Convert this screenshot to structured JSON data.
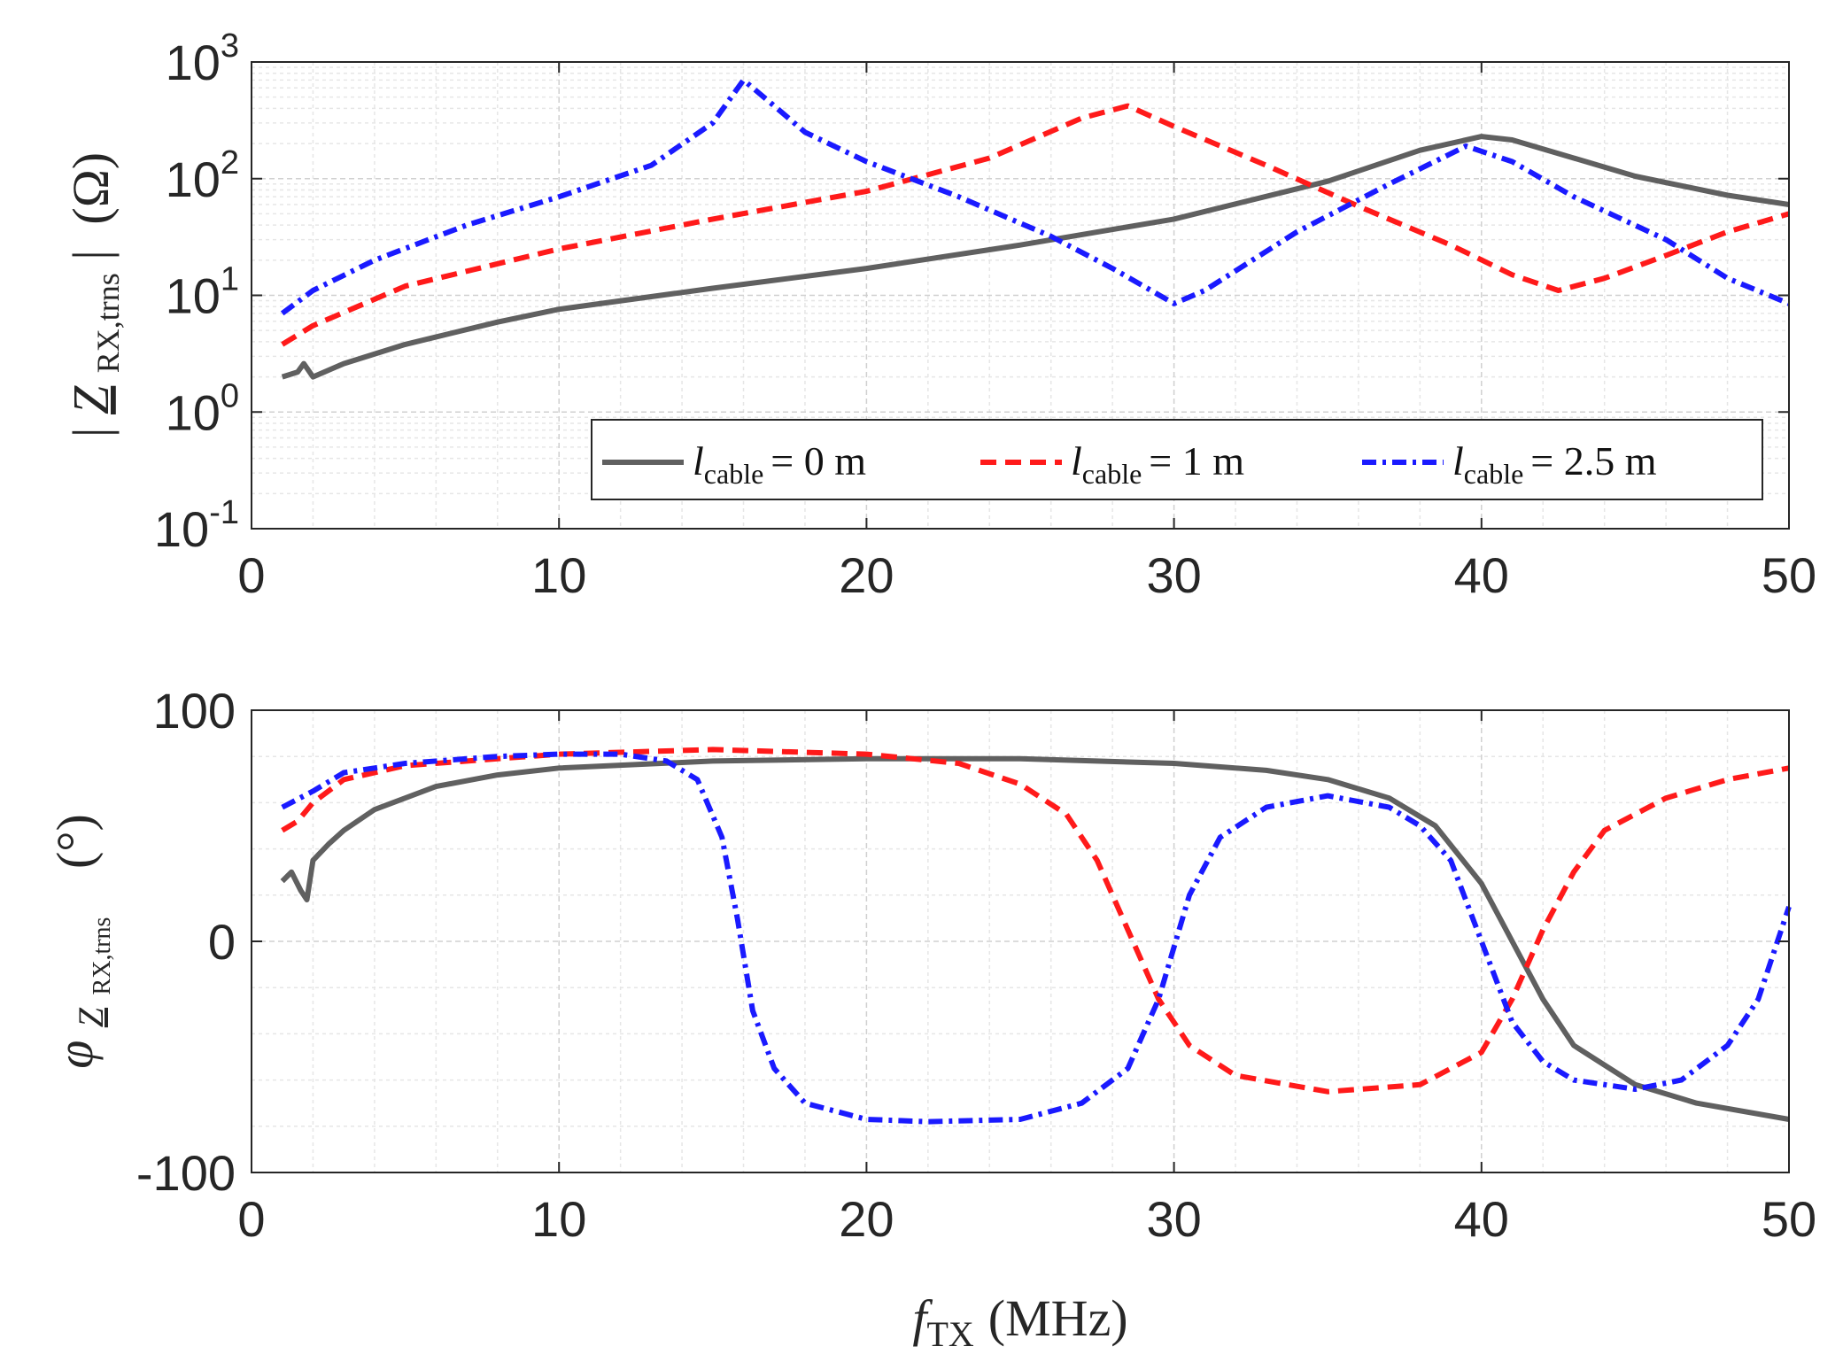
{
  "figure": {
    "xlabel": {
      "var": "f",
      "sub": "TX",
      "unit": "(MHz)"
    }
  },
  "chart_data": [
    {
      "type": "line",
      "title": "",
      "yscale": "log",
      "ylabel": {
        "pre": "|",
        "var": "Z",
        "sub": "RX,trns",
        "post": "|",
        "unit": "(Ω)"
      },
      "xlim": [
        0,
        50
      ],
      "ylim": [
        0.1,
        1000
      ],
      "xticks": [
        0,
        10,
        20,
        30,
        40,
        50
      ],
      "xtick_labels": [
        "0",
        "10",
        "20",
        "30",
        "40",
        "50"
      ],
      "yticks": [
        0.1,
        1,
        10,
        100,
        1000
      ],
      "ytick_labels": [
        {
          "base": "10",
          "exp": "-1"
        },
        {
          "base": "10",
          "exp": "0"
        },
        {
          "base": "10",
          "exp": "1"
        },
        {
          "base": "10",
          "exp": "2"
        },
        {
          "base": "10",
          "exp": "3"
        }
      ],
      "grid": true,
      "legend_position": "bottom-right",
      "series": [
        {
          "name": "l_cable = 0 m",
          "legend": {
            "var": "l",
            "sub": "cable",
            "rest": "= 0 m"
          },
          "color": "#606060",
          "dash": "solid",
          "x": [
            1,
            1.5,
            1.7,
            2,
            3,
            5,
            8,
            10,
            15,
            20,
            25,
            30,
            35,
            38,
            40,
            41,
            43,
            45,
            48,
            50
          ],
          "y": [
            2,
            2.2,
            2.6,
            2.0,
            2.6,
            3.8,
            5.9,
            7.6,
            11.5,
            17,
            27,
            45,
            95,
            175,
            230,
            215,
            150,
            105,
            72,
            60
          ]
        },
        {
          "name": "l_cable = 1 m",
          "legend": {
            "var": "l",
            "sub": "cable",
            "rest": "= 1 m"
          },
          "color": "#ff1a1a",
          "dash": "dashed",
          "x": [
            1,
            2,
            5,
            10,
            15,
            20,
            24,
            27,
            28.5,
            30,
            33,
            36,
            39,
            41,
            42.5,
            44,
            46,
            48,
            50
          ],
          "y": [
            3.8,
            5.5,
            12,
            25,
            45,
            78,
            150,
            330,
            420,
            280,
            130,
            58,
            27,
            15,
            11,
            14,
            22,
            35,
            50
          ]
        },
        {
          "name": "l_cable = 2.5 m",
          "legend": {
            "var": "l",
            "sub": "cable",
            "rest": "= 2.5 m"
          },
          "color": "#1a1aff",
          "dash": "dashdot",
          "x": [
            1,
            2,
            4,
            7,
            10,
            13,
            15,
            16,
            17,
            18,
            20,
            23,
            26,
            28,
            30,
            31,
            34,
            37,
            39.5,
            41,
            43,
            46,
            48,
            50
          ],
          "y": [
            7,
            11,
            20,
            40,
            70,
            130,
            300,
            700,
            420,
            250,
            140,
            70,
            32,
            17,
            8.5,
            11,
            35,
            90,
            190,
            140,
            70,
            30,
            14,
            8.5
          ]
        }
      ]
    },
    {
      "type": "line",
      "title": "",
      "yscale": "linear",
      "ylabel": {
        "var": "φ",
        "subvar": "Z",
        "sub": "RX,trns",
        "unit": "(°)"
      },
      "xlim": [
        0,
        50
      ],
      "ylim": [
        -100,
        100
      ],
      "xticks": [
        0,
        10,
        20,
        30,
        40,
        50
      ],
      "xtick_labels": [
        "0",
        "10",
        "20",
        "30",
        "40",
        "50"
      ],
      "yticks": [
        -100,
        0,
        100
      ],
      "ytick_labels": [
        "-100",
        "0",
        "100"
      ],
      "grid": true,
      "series": [
        {
          "name": "l_cable = 0 m",
          "color": "#606060",
          "dash": "solid",
          "x": [
            1,
            1.3,
            1.6,
            1.8,
            2,
            2.5,
            3,
            4,
            6,
            8,
            10,
            15,
            20,
            25,
            30,
            33,
            35,
            37,
            38.5,
            40,
            41,
            42,
            43,
            45,
            47,
            50
          ],
          "y": [
            26,
            30,
            22,
            18,
            35,
            42,
            48,
            57,
            67,
            72,
            75,
            78,
            79,
            79,
            77,
            74,
            70,
            62,
            50,
            25,
            0,
            -25,
            -45,
            -62,
            -70,
            -77
          ]
        },
        {
          "name": "l_cable = 1 m",
          "color": "#ff1a1a",
          "dash": "dashed",
          "x": [
            1,
            1.5,
            2,
            3,
            5,
            10,
            15,
            20,
            23,
            25,
            26.5,
            27.5,
            28.5,
            29.5,
            30.5,
            32,
            35,
            38,
            40,
            41,
            42,
            43,
            44,
            46,
            48,
            50
          ],
          "y": [
            48,
            52,
            60,
            70,
            76,
            81,
            83,
            81,
            77,
            68,
            55,
            35,
            5,
            -25,
            -45,
            -58,
            -65,
            -62,
            -48,
            -25,
            5,
            30,
            48,
            62,
            70,
            75
          ]
        },
        {
          "name": "l_cable = 2.5 m",
          "color": "#1a1aff",
          "dash": "dashdot",
          "x": [
            1,
            2,
            3,
            5,
            8,
            10,
            12,
            13.5,
            14.5,
            15.3,
            15.8,
            16.3,
            17,
            18,
            20,
            22,
            25,
            27,
            28.5,
            29.5,
            30.5,
            31.5,
            33,
            35,
            37,
            38,
            39,
            40,
            41,
            42,
            43,
            45,
            46.5,
            48,
            49,
            50
          ],
          "y": [
            58,
            65,
            73,
            77,
            80,
            81,
            81,
            78,
            70,
            45,
            10,
            -30,
            -55,
            -70,
            -77,
            -78,
            -77,
            -70,
            -55,
            -25,
            20,
            45,
            58,
            63,
            58,
            50,
            35,
            0,
            -35,
            -52,
            -60,
            -64,
            -60,
            -45,
            -25,
            15
          ]
        }
      ]
    }
  ]
}
